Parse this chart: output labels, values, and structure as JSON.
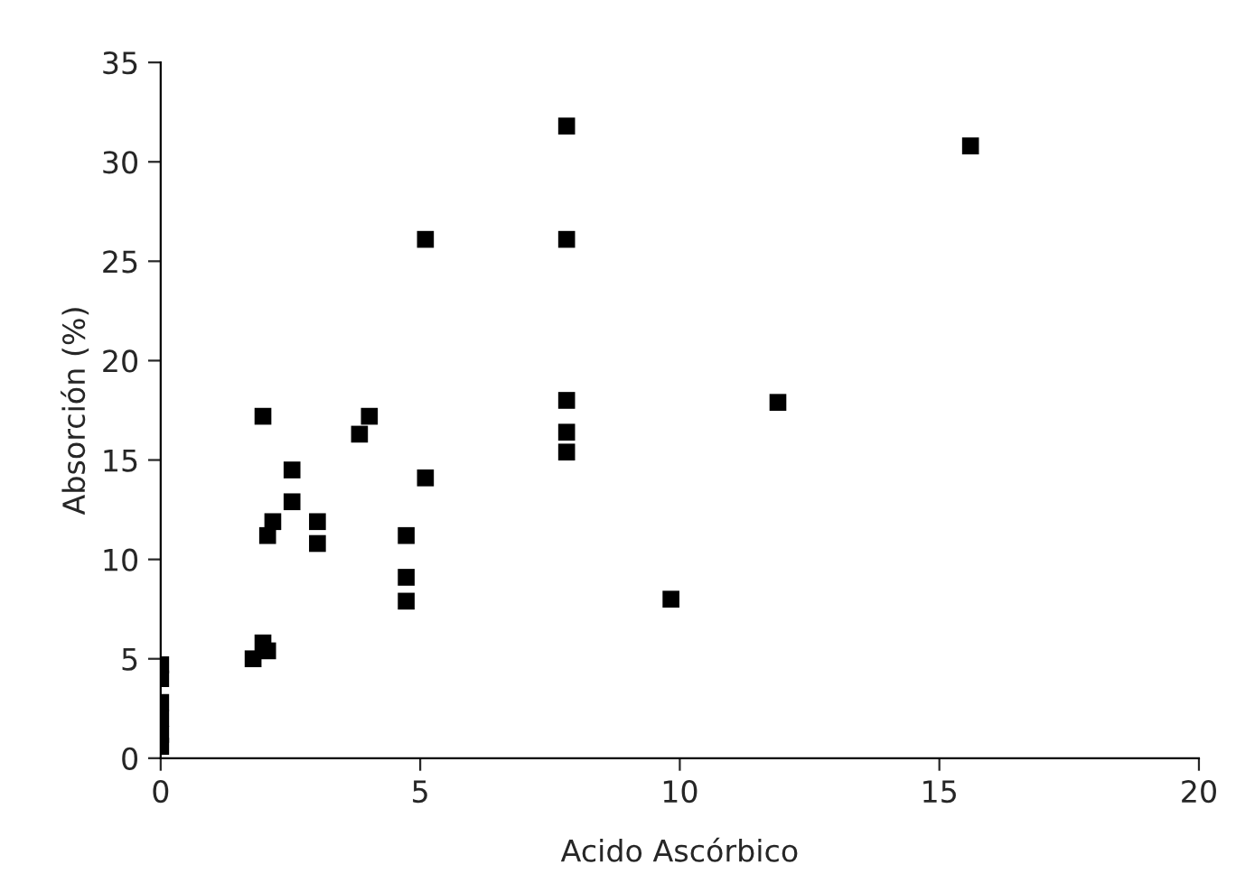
{
  "chart_data": {
    "type": "scatter",
    "xlabel": "Acido Ascórbico",
    "ylabel": "Absorción (%)",
    "xlim": [
      0,
      20
    ],
    "ylim": [
      0,
      35
    ],
    "xticks": [
      0,
      5,
      10,
      15,
      20
    ],
    "yticks": [
      0,
      5,
      10,
      15,
      20,
      25,
      30,
      35
    ],
    "grid": false,
    "legend": false,
    "marker": "square",
    "series": [
      {
        "color": "#000000",
        "x": [
          1.97,
          4.02,
          3.83,
          2.53,
          2.53,
          2.16,
          2.06,
          3.02,
          3.02,
          5.1,
          4.73,
          4.73,
          4.73,
          1.78,
          1.97,
          2.06,
          0,
          0,
          0,
          0,
          0,
          0,
          7.82,
          15.6,
          5.1,
          7.82,
          7.82,
          7.82,
          7.82,
          11.89,
          9.83
        ],
        "values": [
          17.2,
          17.2,
          16.3,
          14.5,
          12.9,
          11.9,
          11.2,
          11.9,
          10.8,
          14.1,
          11.2,
          9.1,
          7.9,
          5.0,
          5.8,
          5.4,
          4.7,
          4.0,
          2.8,
          2.0,
          1.2,
          0.6,
          31.8,
          30.8,
          26.1,
          26.1,
          18.0,
          16.4,
          15.4,
          17.9,
          8.0
        ]
      }
    ]
  }
}
